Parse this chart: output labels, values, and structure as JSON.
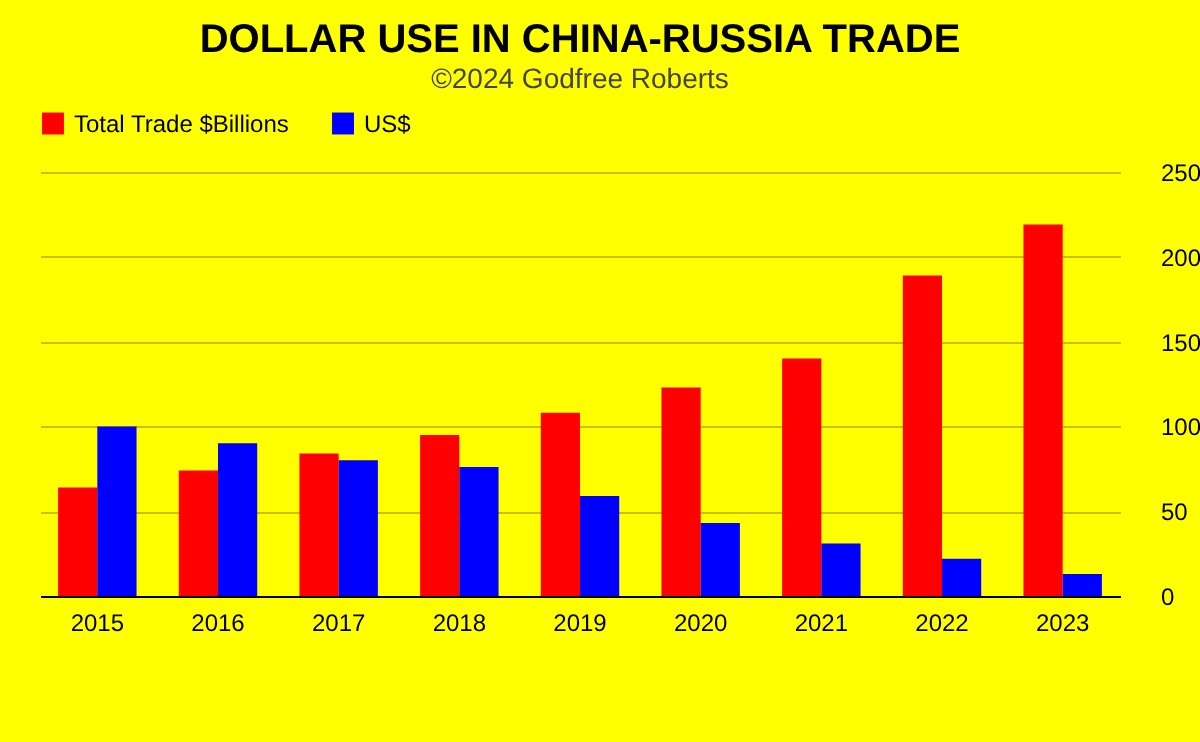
{
  "chart_data": {
    "type": "bar",
    "title": "DOLLAR USE IN CHINA-RUSSIA TRADE",
    "subtitle": "©2024 Godfree Roberts",
    "categories": [
      "2015",
      "2016",
      "2017",
      "2018",
      "2019",
      "2020",
      "2021",
      "2022",
      "2023"
    ],
    "series": [
      {
        "name": "Total Trade $Billions",
        "color": "#ff0000",
        "values": [
          64,
          74,
          84,
          95,
          108,
          123,
          140,
          189,
          219
        ]
      },
      {
        "name": "US$",
        "color": "#0000ff",
        "values": [
          100,
          90,
          80,
          76,
          59,
          43,
          31,
          22,
          13
        ]
      }
    ],
    "ylim": [
      0,
      250
    ],
    "yticks": [
      0,
      50,
      100,
      150,
      200,
      250
    ],
    "grid": "y",
    "legend": "top"
  }
}
